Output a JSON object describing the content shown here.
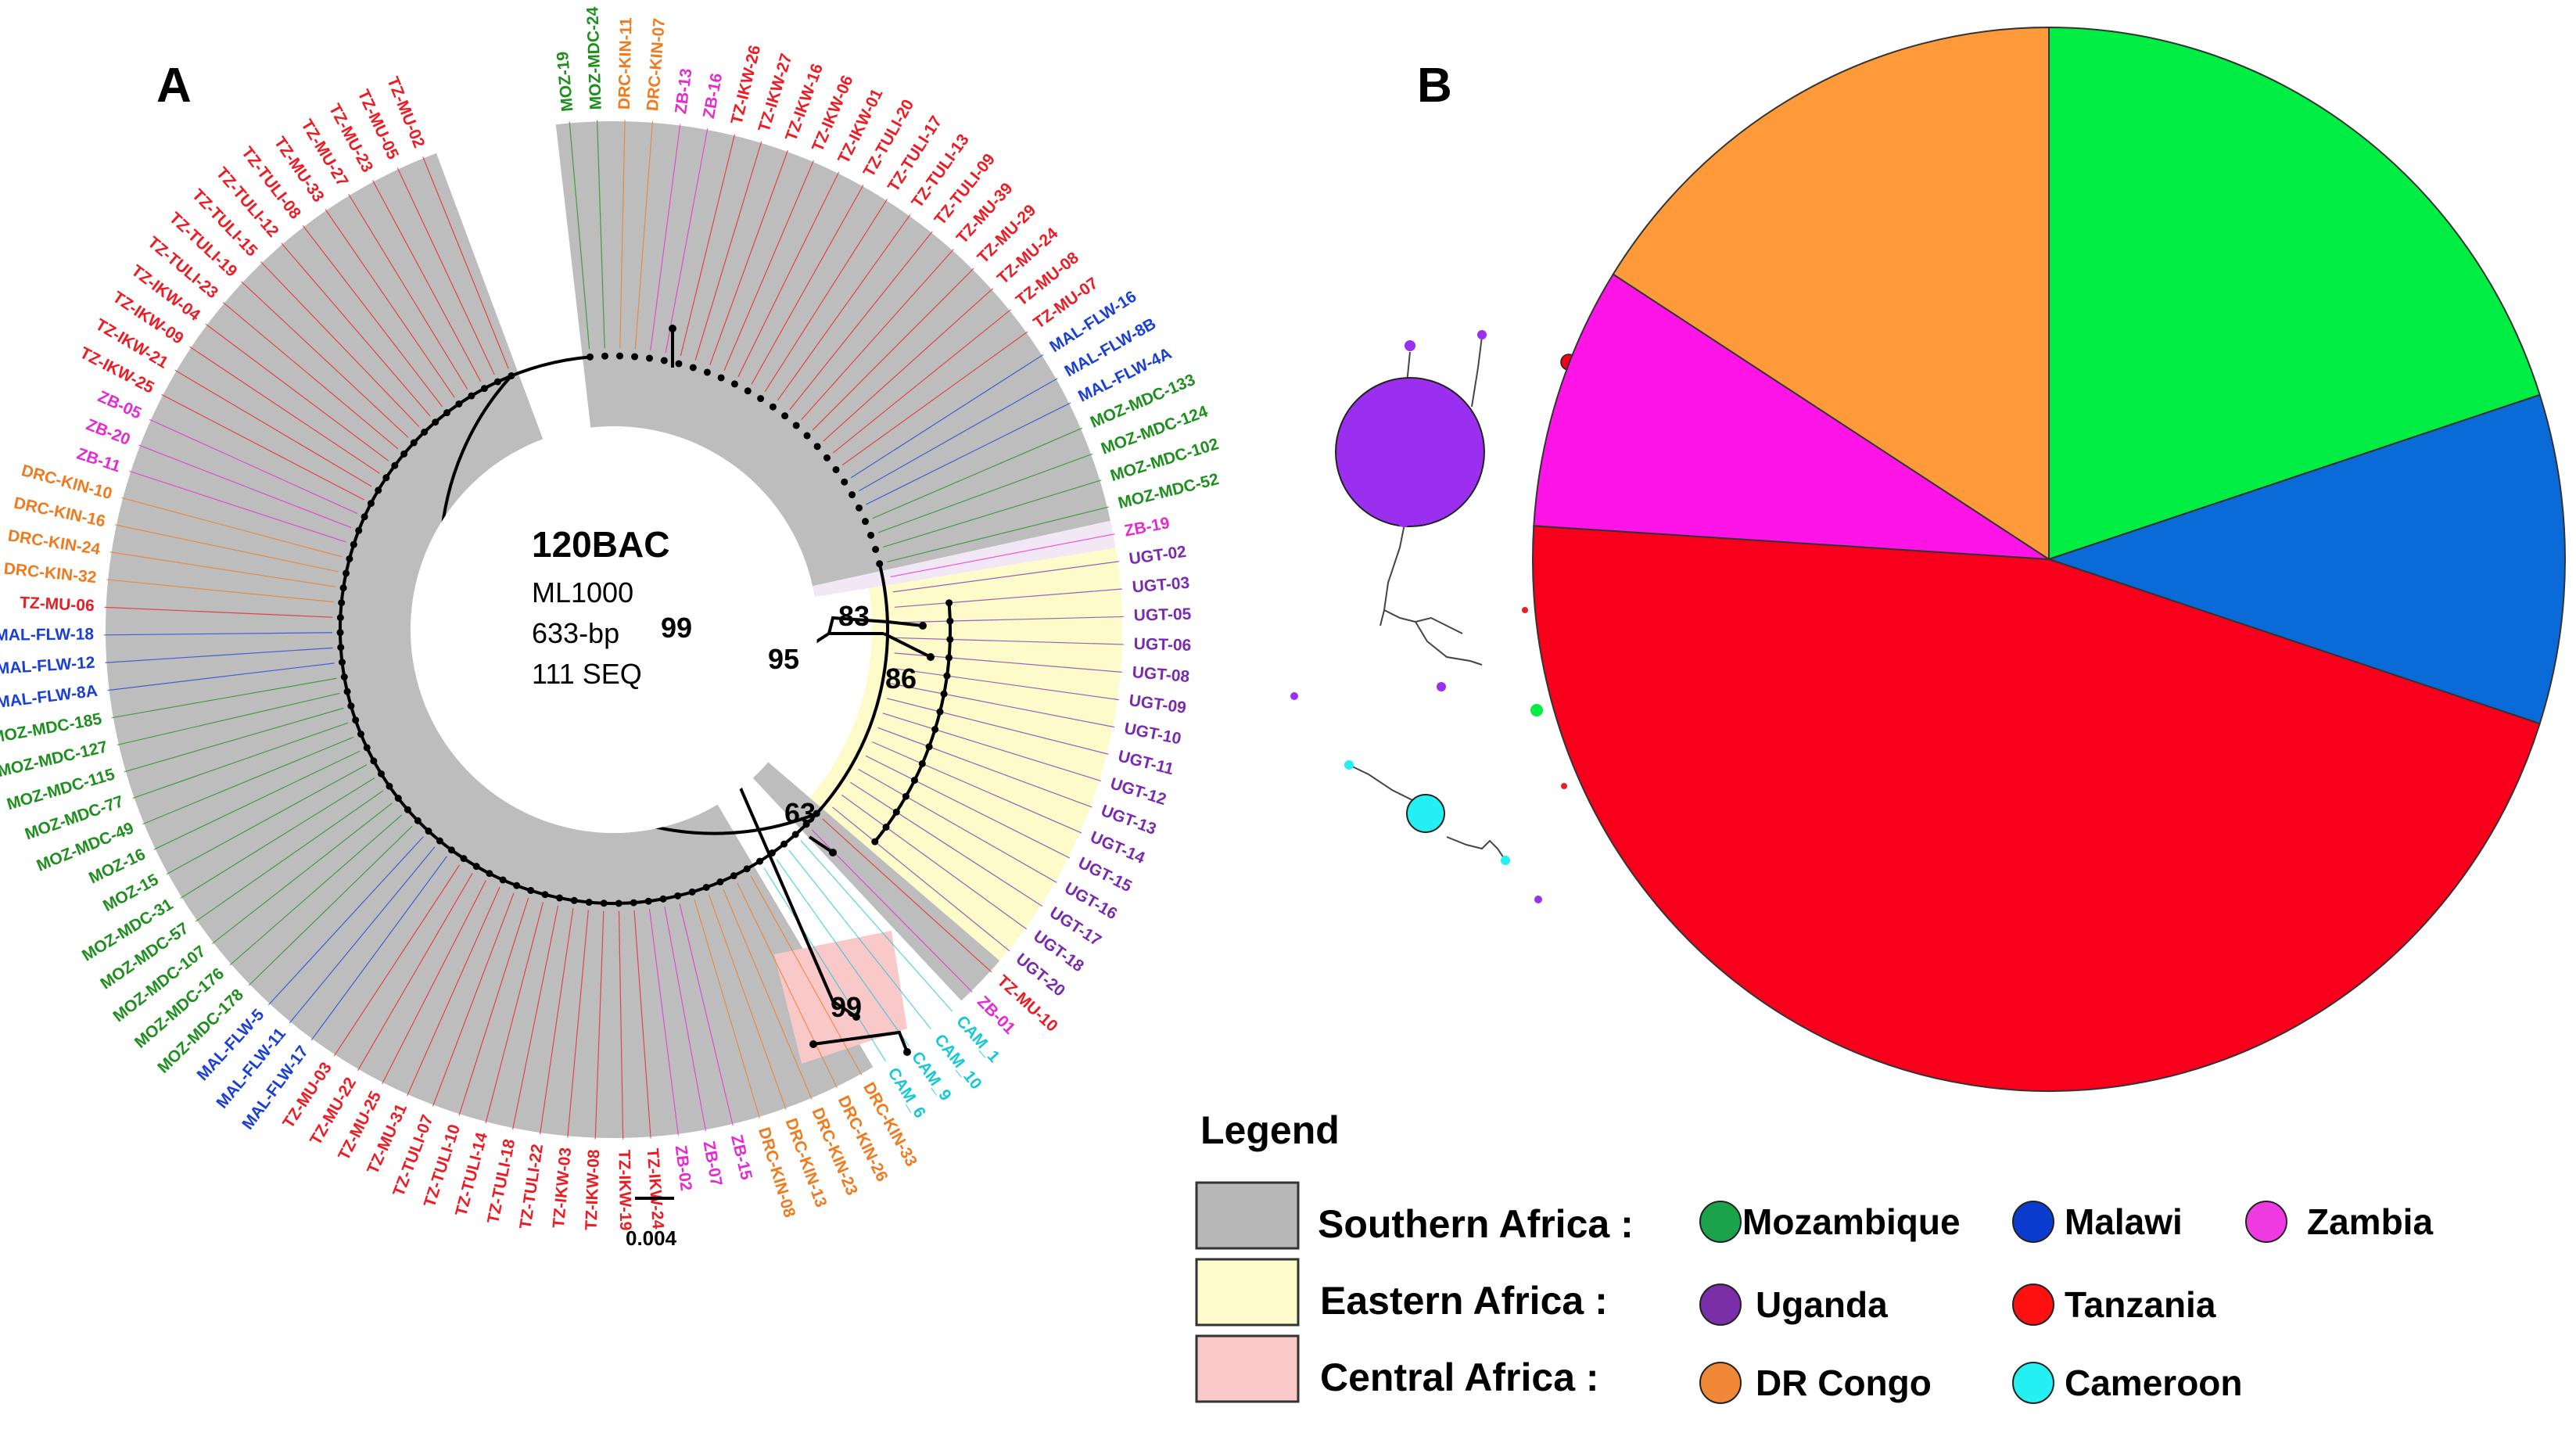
{
  "panel_a": {
    "label": "A",
    "center": {
      "title": "120BAC",
      "line1": "ML1000",
      "line2": "633-bp",
      "line3": "111 SEQ"
    },
    "bootstrap": [
      {
        "value": "99"
      },
      {
        "value": "95"
      },
      {
        "value": "83"
      },
      {
        "value": "86"
      },
      {
        "value": "63"
      },
      {
        "value": "99"
      }
    ],
    "scale_bar": "0.004",
    "leaf_colors": {
      "Mozambique": "#1e8f1e",
      "Malawi": "#1a3fd6",
      "Zambia": "#e62ad2",
      "Uganda": "#7a2ab0",
      "Tanzania": "#ec1c24",
      "DR Congo": "#f07a1e",
      "Cameroon": "#17c8d6"
    },
    "leaves": [
      {
        "label": "MOZ-19",
        "country": "Mozambique"
      },
      {
        "label": "MOZ-MDC-24",
        "country": "Mozambique"
      },
      {
        "label": "DRC-KIN-11",
        "country": "DR Congo"
      },
      {
        "label": "DRC-KIN-07",
        "country": "DR Congo"
      },
      {
        "label": "ZB-13",
        "country": "Zambia"
      },
      {
        "label": "ZB-16",
        "country": "Zambia"
      },
      {
        "label": "TZ-IKW-26",
        "country": "Tanzania"
      },
      {
        "label": "TZ-IKW-27",
        "country": "Tanzania"
      },
      {
        "label": "TZ-IKW-16",
        "country": "Tanzania"
      },
      {
        "label": "TZ-IKW-06",
        "country": "Tanzania"
      },
      {
        "label": "TZ-IKW-01",
        "country": "Tanzania"
      },
      {
        "label": "TZ-TULI-20",
        "country": "Tanzania"
      },
      {
        "label": "TZ-TULI-17",
        "country": "Tanzania"
      },
      {
        "label": "TZ-TULI-13",
        "country": "Tanzania"
      },
      {
        "label": "TZ-TULI-09",
        "country": "Tanzania"
      },
      {
        "label": "TZ-MU-39",
        "country": "Tanzania"
      },
      {
        "label": "TZ-MU-29",
        "country": "Tanzania"
      },
      {
        "label": "TZ-MU-24",
        "country": "Tanzania"
      },
      {
        "label": "TZ-MU-08",
        "country": "Tanzania"
      },
      {
        "label": "TZ-MU-07",
        "country": "Tanzania"
      },
      {
        "label": "MAL-FLW-16",
        "country": "Malawi"
      },
      {
        "label": "MAL-FLW-8B",
        "country": "Malawi"
      },
      {
        "label": "MAL-FLW-4A",
        "country": "Malawi"
      },
      {
        "label": "MOZ-MDC-133",
        "country": "Mozambique"
      },
      {
        "label": "MOZ-MDC-124",
        "country": "Mozambique"
      },
      {
        "label": "MOZ-MDC-102",
        "country": "Mozambique"
      },
      {
        "label": "MOZ-MDC-52",
        "country": "Mozambique"
      },
      {
        "label": "ZB-19",
        "country": "Zambia"
      },
      {
        "label": "UGT-02",
        "country": "Uganda"
      },
      {
        "label": "UGT-03",
        "country": "Uganda"
      },
      {
        "label": "UGT-05",
        "country": "Uganda"
      },
      {
        "label": "UGT-06",
        "country": "Uganda"
      },
      {
        "label": "UGT-08",
        "country": "Uganda"
      },
      {
        "label": "UGT-09",
        "country": "Uganda"
      },
      {
        "label": "UGT-10",
        "country": "Uganda"
      },
      {
        "label": "UGT-11",
        "country": "Uganda"
      },
      {
        "label": "UGT-12",
        "country": "Uganda"
      },
      {
        "label": "UGT-13",
        "country": "Uganda"
      },
      {
        "label": "UGT-14",
        "country": "Uganda"
      },
      {
        "label": "UGT-15",
        "country": "Uganda"
      },
      {
        "label": "UGT-16",
        "country": "Uganda"
      },
      {
        "label": "UGT-17",
        "country": "Uganda"
      },
      {
        "label": "UGT-18",
        "country": "Uganda"
      },
      {
        "label": "UGT-20",
        "country": "Uganda"
      },
      {
        "label": "TZ-MU-10",
        "country": "Tanzania"
      },
      {
        "label": "ZB-01",
        "country": "Zambia"
      },
      {
        "label": "CAM_1",
        "country": "Cameroon"
      },
      {
        "label": "CAM_10",
        "country": "Cameroon"
      },
      {
        "label": "CAM_9",
        "country": "Cameroon"
      },
      {
        "label": "CAM_6",
        "country": "Cameroon"
      },
      {
        "label": "DRC-KIN-33",
        "country": "DR Congo"
      },
      {
        "label": "DRC-KIN-26",
        "country": "DR Congo"
      },
      {
        "label": "DRC-KIN-23",
        "country": "DR Congo"
      },
      {
        "label": "DRC-KIN-13",
        "country": "DR Congo"
      },
      {
        "label": "DRC-KIN-08",
        "country": "DR Congo"
      },
      {
        "label": "ZB-15",
        "country": "Zambia"
      },
      {
        "label": "ZB-07",
        "country": "Zambia"
      },
      {
        "label": "ZB-02",
        "country": "Zambia"
      },
      {
        "label": "TZ-IKW-24",
        "country": "Tanzania"
      },
      {
        "label": "TZ-IKW-19",
        "country": "Tanzania"
      },
      {
        "label": "TZ-IKW-08",
        "country": "Tanzania"
      },
      {
        "label": "TZ-IKW-03",
        "country": "Tanzania"
      },
      {
        "label": "TZ-TULI-22",
        "country": "Tanzania"
      },
      {
        "label": "TZ-TULI-18",
        "country": "Tanzania"
      },
      {
        "label": "TZ-TULI-14",
        "country": "Tanzania"
      },
      {
        "label": "TZ-TULI-10",
        "country": "Tanzania"
      },
      {
        "label": "TZ-TULI-07",
        "country": "Tanzania"
      },
      {
        "label": "TZ-MU-31",
        "country": "Tanzania"
      },
      {
        "label": "TZ-MU-25",
        "country": "Tanzania"
      },
      {
        "label": "TZ-MU-22",
        "country": "Tanzania"
      },
      {
        "label": "TZ-MU-03",
        "country": "Tanzania"
      },
      {
        "label": "MAL-FLW-17",
        "country": "Malawi"
      },
      {
        "label": "MAL-FLW-11",
        "country": "Malawi"
      },
      {
        "label": "MAL-FLW-5",
        "country": "Malawi"
      },
      {
        "label": "MOZ-MDC-178",
        "country": "Mozambique"
      },
      {
        "label": "MOZ-MDC-176",
        "country": "Mozambique"
      },
      {
        "label": "MOZ-MDC-107",
        "country": "Mozambique"
      },
      {
        "label": "MOZ-MDC-57",
        "country": "Mozambique"
      },
      {
        "label": "MOZ-MDC-31",
        "country": "Mozambique"
      },
      {
        "label": "MOZ-15",
        "country": "Mozambique"
      },
      {
        "label": "MOZ-16",
        "country": "Mozambique"
      },
      {
        "label": "MOZ-MDC-49",
        "country": "Mozambique"
      },
      {
        "label": "MOZ-MDC-77",
        "country": "Mozambique"
      },
      {
        "label": "MOZ-MDC-115",
        "country": "Mozambique"
      },
      {
        "label": "MOZ-MDC-127",
        "country": "Mozambique"
      },
      {
        "label": "MOZ-MDC-185",
        "country": "Mozambique"
      },
      {
        "label": "MAL-FLW-8A",
        "country": "Malawi"
      },
      {
        "label": "MAL-FLW-12",
        "country": "Malawi"
      },
      {
        "label": "MAL-FLW-18",
        "country": "Malawi"
      },
      {
        "label": "TZ-MU-06",
        "country": "Tanzania"
      },
      {
        "label": "DRC-KIN-32",
        "country": "DR Congo"
      },
      {
        "label": "DRC-KIN-24",
        "country": "DR Congo"
      },
      {
        "label": "DRC-KIN-16",
        "country": "DR Congo"
      },
      {
        "label": "DRC-KIN-10",
        "country": "DR Congo"
      },
      {
        "label": "ZB-11",
        "country": "Zambia"
      },
      {
        "label": "ZB-20",
        "country": "Zambia"
      },
      {
        "label": "ZB-05",
        "country": "Zambia"
      },
      {
        "label": "TZ-IKW-25",
        "country": "Tanzania"
      },
      {
        "label": "TZ-IKW-21",
        "country": "Tanzania"
      },
      {
        "label": "TZ-IKW-09",
        "country": "Tanzania"
      },
      {
        "label": "TZ-IKW-04",
        "country": "Tanzania"
      },
      {
        "label": "TZ-TULI-23",
        "country": "Tanzania"
      },
      {
        "label": "TZ-TULI-19",
        "country": "Tanzania"
      },
      {
        "label": "TZ-TULI-15",
        "country": "Tanzania"
      },
      {
        "label": "TZ-TULI-12",
        "country": "Tanzania"
      },
      {
        "label": "TZ-TULI-08",
        "country": "Tanzania"
      },
      {
        "label": "TZ-MU-33",
        "country": "Tanzania"
      },
      {
        "label": "TZ-MU-27",
        "country": "Tanzania"
      },
      {
        "label": "TZ-MU-23",
        "country": "Tanzania"
      },
      {
        "label": "TZ-MU-05",
        "country": "Tanzania"
      },
      {
        "label": "TZ-MU-02",
        "country": "Tanzania"
      }
    ]
  },
  "panel_b": {
    "label": "B",
    "chart_data": {
      "type": "pie",
      "title": "",
      "slices": [
        {
          "name": "Mozambique",
          "value": 20,
          "color": "#00ee44"
        },
        {
          "name": "Malawi",
          "value": 10,
          "color": "#0a6ad8"
        },
        {
          "name": "Tanzania",
          "value": 46,
          "color": "#f8001c"
        },
        {
          "name": "Zambia",
          "value": 8,
          "color": "#ff14e8"
        },
        {
          "name": "DR Congo",
          "value": 16,
          "color": "#ff9a3a"
        }
      ]
    }
  },
  "legend": {
    "title": "Legend",
    "regions": [
      {
        "name": "Southern Africa :",
        "color": "#b7b7b7"
      },
      {
        "name": "Eastern Africa :",
        "color": "#fdfbc9"
      },
      {
        "name": "Central Africa :",
        "color": "#f9c8c8"
      }
    ],
    "countries": [
      {
        "name": "Mozambique",
        "color": "#1aa34a"
      },
      {
        "name": "Malawi",
        "color": "#0c3bd0"
      },
      {
        "name": "Zambia",
        "color": "#ee3ae0"
      },
      {
        "name": "Uganda",
        "color": "#7a2fa8"
      },
      {
        "name": "Tanzania",
        "color": "#ff1010"
      },
      {
        "name": "DR Congo",
        "color": "#f08838"
      },
      {
        "name": "Cameroon",
        "color": "#22f0f2"
      }
    ]
  }
}
